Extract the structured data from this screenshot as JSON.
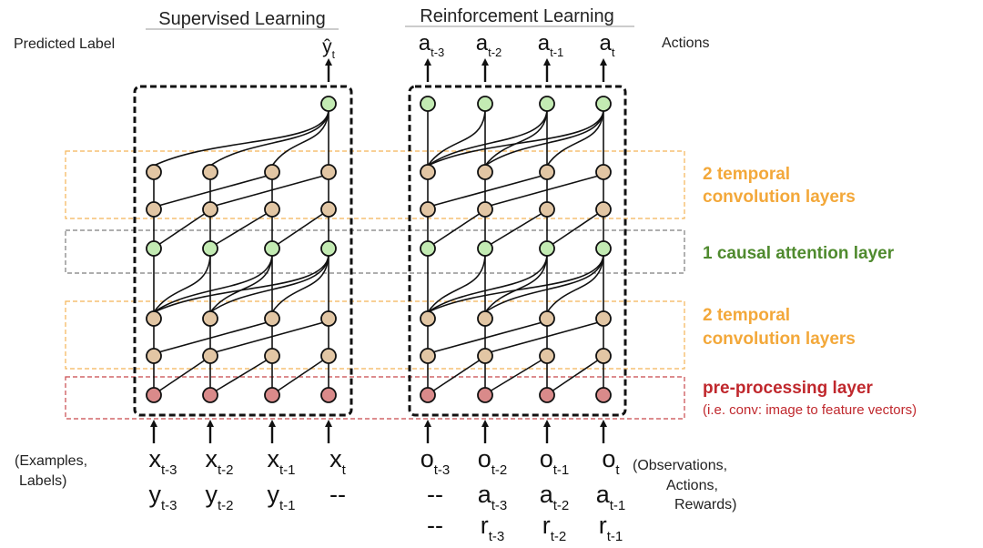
{
  "titles": {
    "supervised": "Supervised Learning",
    "reinforcement": "Reinforcement Learning"
  },
  "side_labels": {
    "predicted_label": "Predicted Label",
    "actions": "Actions",
    "examples_labels": [
      "(Examples,",
      "Labels)"
    ],
    "observations": [
      "(Observations,",
      "Actions,",
      "Rewards)"
    ]
  },
  "layers": {
    "temporal_top": [
      "2 temporal",
      "convolution layers"
    ],
    "attention": "1 causal attention layer",
    "temporal_bottom": [
      "2 temporal",
      "convolution layers"
    ],
    "preprocessing": "pre-processing layer",
    "preprocessing_note": "(i.e. conv: image to feature vectors)"
  },
  "colors": {
    "temporal": "#f3a83a",
    "attention": "#4f8a2e",
    "preprocessing": "#c0282d",
    "node_tan": "#e2c6a4",
    "node_green": "#c3ebb3",
    "node_red": "#d98a8a"
  },
  "supervised": {
    "output": {
      "base": "ŷ",
      "sub": "t"
    },
    "inputs_row1": [
      {
        "base": "x",
        "sub": "t-3"
      },
      {
        "base": "x",
        "sub": "t-2"
      },
      {
        "base": "x",
        "sub": "t-1"
      },
      {
        "base": "x",
        "sub": "t"
      }
    ],
    "inputs_row2": [
      {
        "base": "y",
        "sub": "t-3"
      },
      {
        "base": "y",
        "sub": "t-2"
      },
      {
        "base": "y",
        "sub": "t-1"
      },
      {
        "base": "--",
        "sub": ""
      }
    ]
  },
  "reinforcement": {
    "outputs": [
      {
        "base": "a",
        "sub": "t-3"
      },
      {
        "base": "a",
        "sub": "t-2"
      },
      {
        "base": "a",
        "sub": "t-1"
      },
      {
        "base": "a",
        "sub": "t"
      }
    ],
    "inputs_row1": [
      {
        "base": "o",
        "sub": "t-3"
      },
      {
        "base": "o",
        "sub": "t-2"
      },
      {
        "base": "o",
        "sub": "t-1"
      },
      {
        "base": "o",
        "sub": "t"
      }
    ],
    "inputs_row2": [
      {
        "base": "--",
        "sub": ""
      },
      {
        "base": "a",
        "sub": "t-3"
      },
      {
        "base": "a",
        "sub": "t-2"
      },
      {
        "base": "a",
        "sub": "t-1"
      }
    ],
    "inputs_row3": [
      {
        "base": "--",
        "sub": ""
      },
      {
        "base": "r",
        "sub": "t-3"
      },
      {
        "base": "r",
        "sub": "t-2"
      },
      {
        "base": "r",
        "sub": "t-1"
      }
    ]
  }
}
